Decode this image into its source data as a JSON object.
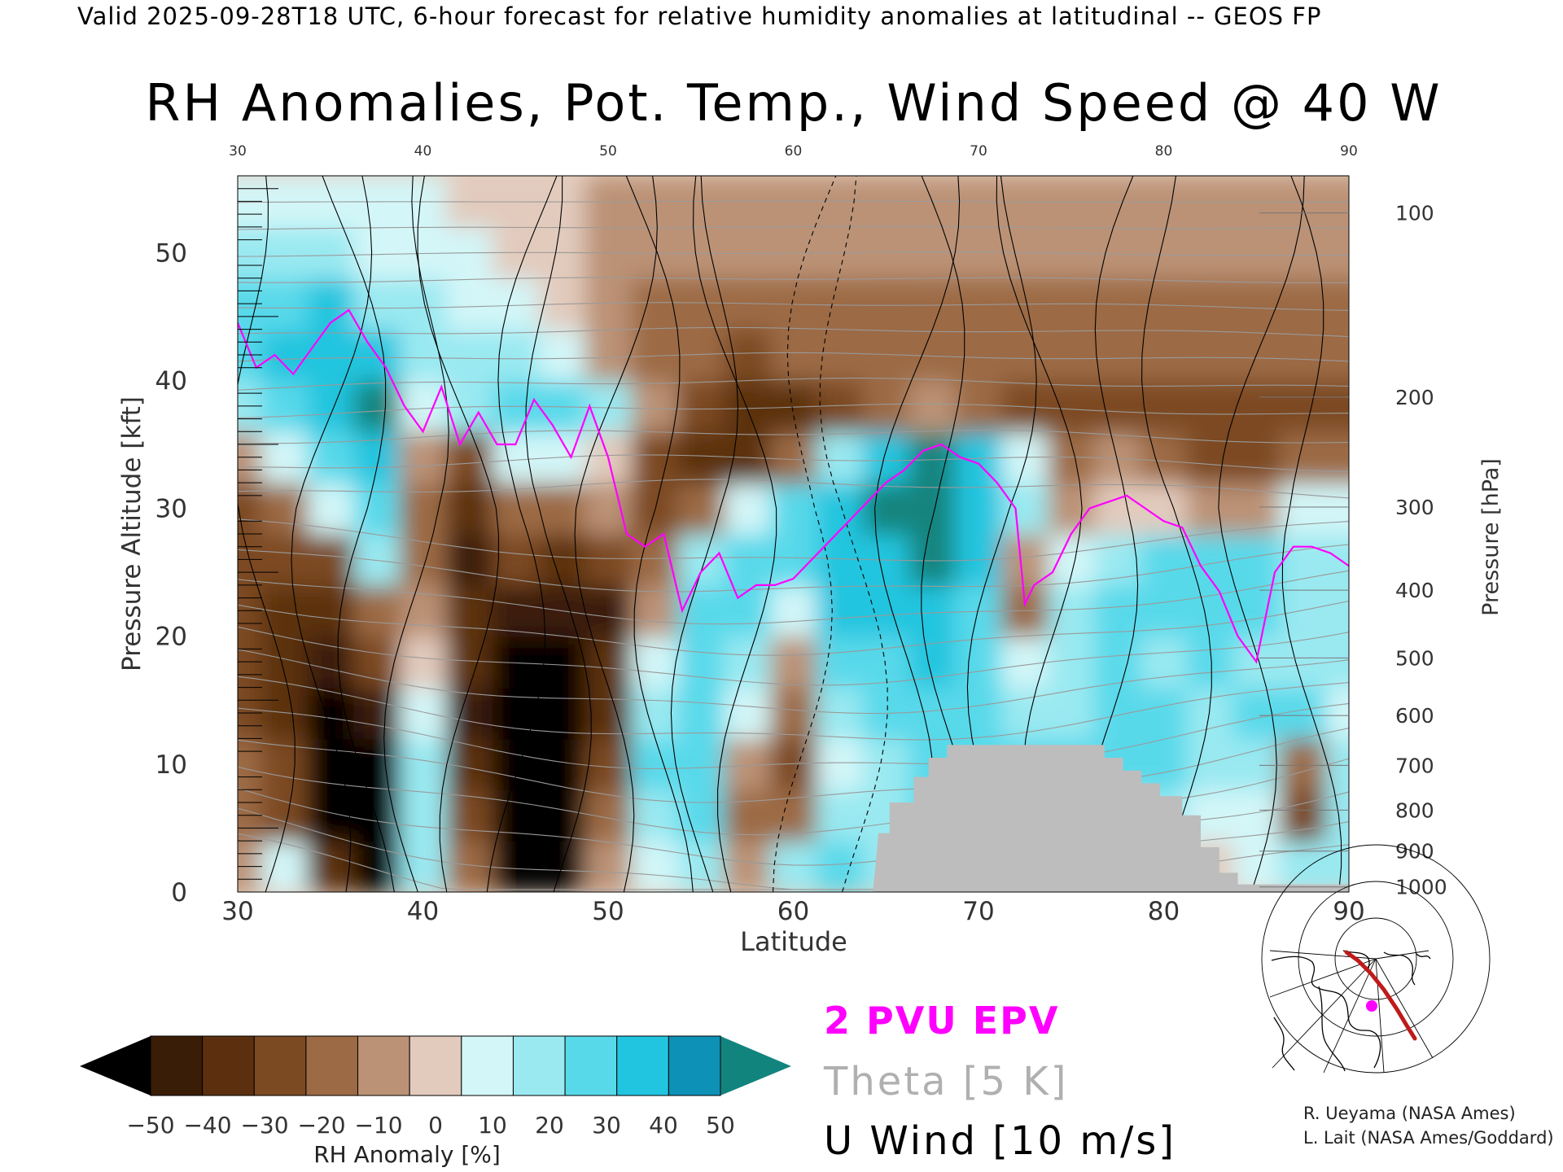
{
  "header": {
    "valid_line": "Valid 2025-09-28T18 UTC, 6-hour forecast for relative humidity anomalies at latitudinal -- GEOS FP"
  },
  "chart_data": {
    "type": "heatmap",
    "title": "RH Anomalies, Pot. Temp., Wind Speed @ 40 W",
    "xlabel": "Latitude",
    "ylabel_left": "Pressure Altitude [kft]",
    "ylabel_right": "Pressure [hPa]",
    "xlim": [
      30,
      90
    ],
    "ylim": [
      0,
      56
    ],
    "x_ticks": [
      30,
      40,
      50,
      60,
      70,
      80,
      90
    ],
    "x_ticks_top": [
      30,
      40,
      50,
      60,
      70,
      80,
      90
    ],
    "y_ticks_left": [
      0,
      10,
      20,
      30,
      40,
      50
    ],
    "y_ticks_right": [
      {
        "hPa": 100,
        "kft": 53.1
      },
      {
        "hPa": 200,
        "kft": 38.7
      },
      {
        "hPa": 300,
        "kft": 30.1
      },
      {
        "hPa": 400,
        "kft": 23.6
      },
      {
        "hPa": 500,
        "kft": 18.3
      },
      {
        "hPa": 600,
        "kft": 13.8
      },
      {
        "hPa": 700,
        "kft": 9.9
      },
      {
        "hPa": 800,
        "kft": 6.4
      },
      {
        "hPa": 900,
        "kft": 3.2
      },
      {
        "hPa": 1000,
        "kft": 0.4
      }
    ],
    "colorbar": {
      "label": "RH Anomaly [%]",
      "tick_labels": [
        "−50",
        "−40",
        "−30",
        "−20",
        "−10",
        "0",
        "10",
        "20",
        "30",
        "40",
        "50"
      ],
      "levels": [
        -50,
        -40,
        -30,
        -20,
        -10,
        0,
        10,
        20,
        30,
        40,
        50
      ],
      "colors": [
        "#3a1d07",
        "#5c300f",
        "#7c4a22",
        "#9c6a44",
        "#bb9276",
        "#e2cbbd",
        "#d3f6f8",
        "#9ae9f1",
        "#58d9ea",
        "#22c5df",
        "#0e91b6"
      ],
      "under_color": "#000000",
      "over_color": "#12847e"
    },
    "legend": [
      {
        "label": "2 PVU EPV",
        "color": "#ff00ff"
      },
      {
        "label": "Theta [5 K]",
        "color": "#a8a8a8"
      },
      {
        "label": "U Wind [10 m/s]",
        "color": "#000000"
      }
    ],
    "rh_anomaly_grid": {
      "latitudes": [
        30,
        32.5,
        35,
        37.5,
        40,
        42.5,
        45,
        47.5,
        50,
        52.5,
        55,
        57.5,
        60,
        62.5,
        65,
        67.5,
        70,
        72.5,
        75,
        77.5,
        80,
        82.5,
        85,
        87.5,
        90
      ],
      "altitudes_kft": [
        2,
        6,
        10,
        14,
        18,
        22,
        26,
        30,
        34,
        38,
        42,
        46,
        50,
        54
      ],
      "values": [
        [
          -10,
          10,
          -40,
          -60,
          20,
          -20,
          -60,
          -60,
          -10,
          10,
          20,
          -10,
          20,
          30,
          25,
          30,
          30,
          35,
          30,
          20,
          10,
          5,
          10,
          20,
          25
        ],
        [
          -20,
          -30,
          -60,
          -60,
          20,
          -30,
          -60,
          -60,
          -20,
          20,
          30,
          -20,
          -20,
          20,
          25,
          30,
          30,
          35,
          30,
          25,
          20,
          15,
          10,
          -30,
          20
        ],
        [
          -20,
          -30,
          -60,
          -60,
          20,
          -40,
          -60,
          -60,
          -30,
          30,
          30,
          -10,
          -30,
          10,
          20,
          30,
          35,
          30,
          30,
          30,
          30,
          25,
          20,
          -20,
          20
        ],
        [
          -30,
          -40,
          -60,
          -50,
          10,
          -50,
          -60,
          -60,
          -40,
          20,
          30,
          10,
          -20,
          20,
          30,
          35,
          30,
          20,
          25,
          30,
          30,
          25,
          30,
          30,
          15
        ],
        [
          -30,
          -40,
          -50,
          -30,
          0,
          -40,
          -60,
          -60,
          -40,
          10,
          30,
          20,
          -10,
          30,
          35,
          40,
          30,
          10,
          25,
          35,
          25,
          30,
          25,
          25,
          20
        ],
        [
          -30,
          -40,
          -40,
          -20,
          -10,
          -40,
          -50,
          -50,
          -50,
          -10,
          30,
          30,
          10,
          40,
          40,
          45,
          35,
          -20,
          20,
          30,
          30,
          35,
          35,
          20,
          25
        ],
        [
          -30,
          -30,
          -30,
          20,
          -20,
          -50,
          -30,
          -40,
          -30,
          -20,
          20,
          30,
          30,
          40,
          40,
          50,
          40,
          -10,
          15,
          25,
          30,
          30,
          35,
          25,
          20
        ],
        [
          -30,
          -20,
          10,
          30,
          -20,
          -40,
          -20,
          -20,
          -10,
          -30,
          -20,
          10,
          35,
          40,
          50,
          55,
          45,
          20,
          -10,
          5,
          0,
          -10,
          -10,
          10,
          10
        ],
        [
          -10,
          10,
          30,
          40,
          -10,
          -30,
          10,
          10,
          5,
          -30,
          -40,
          -40,
          -20,
          20,
          40,
          50,
          40,
          10,
          -20,
          -10,
          -20,
          -30,
          -30,
          -20,
          -20
        ],
        [
          20,
          30,
          40,
          55,
          10,
          20,
          30,
          30,
          20,
          -10,
          -30,
          -40,
          -40,
          -30,
          -20,
          -10,
          -20,
          -30,
          -30,
          -30,
          -30,
          -30,
          -30,
          -30,
          -30
        ],
        [
          35,
          40,
          40,
          40,
          20,
          20,
          20,
          10,
          -10,
          -20,
          -20,
          -25,
          -20,
          -20,
          -20,
          -20,
          -20,
          -20,
          -20,
          -20,
          -20,
          -20,
          -20,
          -20,
          -20
        ],
        [
          35,
          30,
          40,
          20,
          20,
          15,
          10,
          0,
          -10,
          -15,
          -15,
          -15,
          -15,
          -15,
          -15,
          -15,
          -15,
          -15,
          -15,
          -15,
          -15,
          -15,
          -15,
          -15,
          -15
        ],
        [
          20,
          20,
          20,
          15,
          15,
          10,
          5,
          0,
          -10,
          -10,
          -10,
          -10,
          -10,
          -10,
          -10,
          -10,
          -10,
          -10,
          -10,
          -10,
          -10,
          -10,
          -10,
          -10,
          -10
        ],
        [
          10,
          10,
          10,
          10,
          10,
          5,
          0,
          0,
          -5,
          -5,
          -5,
          -5,
          -5,
          -5,
          -5,
          -5,
          -5,
          -5,
          -5,
          -5,
          -5,
          -5,
          -5,
          -5,
          -5
        ]
      ]
    },
    "terrain_kft": [
      [
        64.3,
        0
      ],
      [
        64.6,
        4.6
      ],
      [
        65.2,
        4.6
      ],
      [
        65.2,
        7.0
      ],
      [
        66.5,
        7.0
      ],
      [
        66.5,
        9.0
      ],
      [
        67.3,
        9.0
      ],
      [
        67.3,
        10.5
      ],
      [
        68.3,
        10.5
      ],
      [
        68.3,
        11.5
      ],
      [
        76.8,
        11.5
      ],
      [
        76.8,
        10.5
      ],
      [
        77.8,
        10.5
      ],
      [
        77.8,
        9.5
      ],
      [
        78.8,
        9.5
      ],
      [
        78.8,
        8.5
      ],
      [
        79.8,
        8.5
      ],
      [
        79.8,
        7.5
      ],
      [
        81.0,
        7.5
      ],
      [
        81.0,
        6.0
      ],
      [
        82.0,
        6.0
      ],
      [
        82.0,
        3.5
      ],
      [
        83.0,
        3.5
      ],
      [
        83.0,
        1.5
      ],
      [
        84.0,
        1.5
      ],
      [
        84.0,
        0.6
      ],
      [
        90,
        0.6
      ],
      [
        90,
        0
      ]
    ],
    "epv_2pvu_kft": [
      [
        30,
        44.5
      ],
      [
        31,
        41
      ],
      [
        32,
        42
      ],
      [
        33,
        40.5
      ],
      [
        34,
        42.5
      ],
      [
        35,
        44.5
      ],
      [
        36,
        45.5
      ],
      [
        37,
        43
      ],
      [
        38,
        41
      ],
      [
        39,
        38
      ],
      [
        40,
        36
      ],
      [
        41,
        39.5
      ],
      [
        42,
        35
      ],
      [
        43,
        37.5
      ],
      [
        44,
        35
      ],
      [
        45,
        35
      ],
      [
        46,
        38.5
      ],
      [
        47,
        36.5
      ],
      [
        48,
        34
      ],
      [
        49,
        38
      ],
      [
        50,
        34
      ],
      [
        51,
        28
      ],
      [
        52,
        27
      ],
      [
        53,
        28
      ],
      [
        54,
        22
      ],
      [
        55,
        25
      ],
      [
        56,
        26.5
      ],
      [
        57,
        23
      ],
      [
        58,
        24
      ],
      [
        59,
        24
      ],
      [
        60,
        24.5
      ],
      [
        61,
        26
      ],
      [
        62,
        27.5
      ],
      [
        63,
        29
      ],
      [
        64,
        30.5
      ],
      [
        65,
        32
      ],
      [
        66,
        33
      ],
      [
        67,
        34.5
      ],
      [
        68,
        35
      ],
      [
        69,
        34
      ],
      [
        70,
        33.5
      ],
      [
        71,
        32
      ],
      [
        72,
        30
      ],
      [
        72.5,
        22.5
      ],
      [
        73,
        24
      ],
      [
        74,
        25
      ],
      [
        75,
        28
      ],
      [
        76,
        30
      ],
      [
        77,
        30.5
      ],
      [
        78,
        31
      ],
      [
        79,
        30
      ],
      [
        80,
        29
      ],
      [
        81,
        28.5
      ],
      [
        82,
        25.5
      ],
      [
        83,
        23.5
      ],
      [
        84,
        20
      ],
      [
        85,
        18
      ],
      [
        86,
        25
      ],
      [
        87,
        27
      ],
      [
        88,
        27
      ],
      [
        89,
        26.5
      ],
      [
        90,
        25.5
      ]
    ],
    "theta_levels_K": [
      300,
      305,
      310,
      315,
      320,
      325,
      330,
      335,
      340,
      345,
      350,
      355,
      360,
      365,
      370,
      375,
      380,
      385,
      390,
      395,
      400,
      405,
      410,
      415,
      420
    ],
    "u_wind_contour_labels_ms": [
      0,
      10,
      20,
      30,
      -10
    ]
  },
  "credits": {
    "line1": "R. Ueyama (NASA Ames)",
    "line2": "L. Lait (NASA Ames/Goddard)"
  }
}
